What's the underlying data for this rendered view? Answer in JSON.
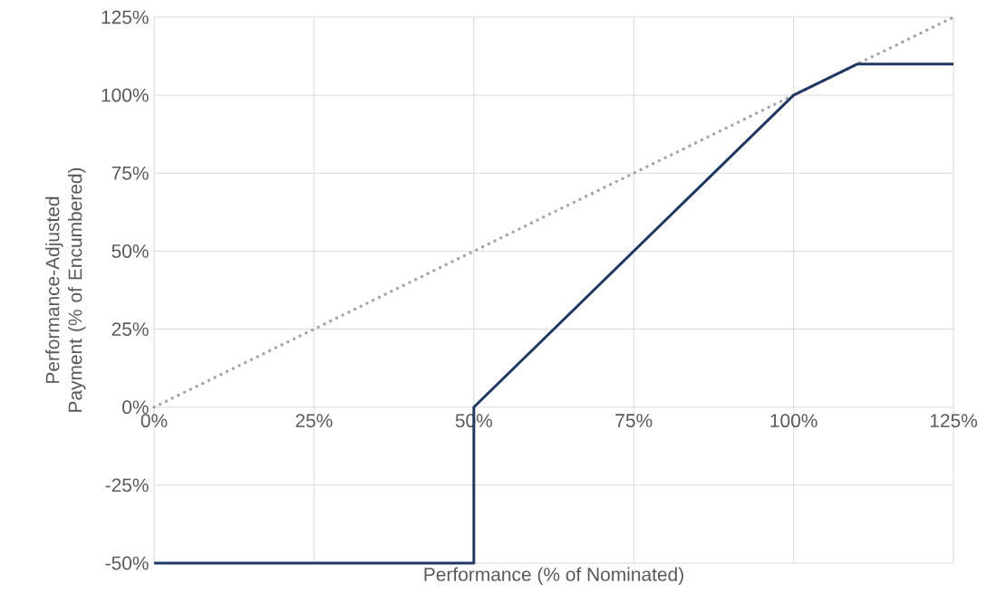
{
  "chart_data": {
    "type": "line",
    "xlabel": "Performance (% of Nominated)",
    "ylabel": "Performance-Adjusted Payment (% of Encumbered)",
    "xlim": [
      0,
      125
    ],
    "ylim": [
      -50,
      125
    ],
    "xticks": [
      {
        "value": 0,
        "label": "0%"
      },
      {
        "value": 25,
        "label": "25%"
      },
      {
        "value": 50,
        "label": "50%"
      },
      {
        "value": 75,
        "label": "75%"
      },
      {
        "value": 100,
        "label": "100%"
      },
      {
        "value": 125,
        "label": "125%"
      }
    ],
    "yticks": [
      {
        "value": -50,
        "label": "-50%"
      },
      {
        "value": -25,
        "label": "-25%"
      },
      {
        "value": 0,
        "label": "0%"
      },
      {
        "value": 25,
        "label": "25%"
      },
      {
        "value": 50,
        "label": "50%"
      },
      {
        "value": 75,
        "label": "75%"
      },
      {
        "value": 100,
        "label": "100%"
      },
      {
        "value": 125,
        "label": "125%"
      }
    ],
    "grid": true,
    "marker": "none",
    "series": [
      {
        "color": "#a6a6a6",
        "line_style": "dotted",
        "x": [
          0,
          125
        ],
        "values": [
          0,
          125
        ]
      },
      {
        "color": "#1f3864",
        "line_style": "solid",
        "x": [
          0,
          50,
          50,
          100,
          110,
          125
        ],
        "values": [
          -50,
          -50,
          0,
          100,
          110,
          110
        ]
      }
    ]
  }
}
